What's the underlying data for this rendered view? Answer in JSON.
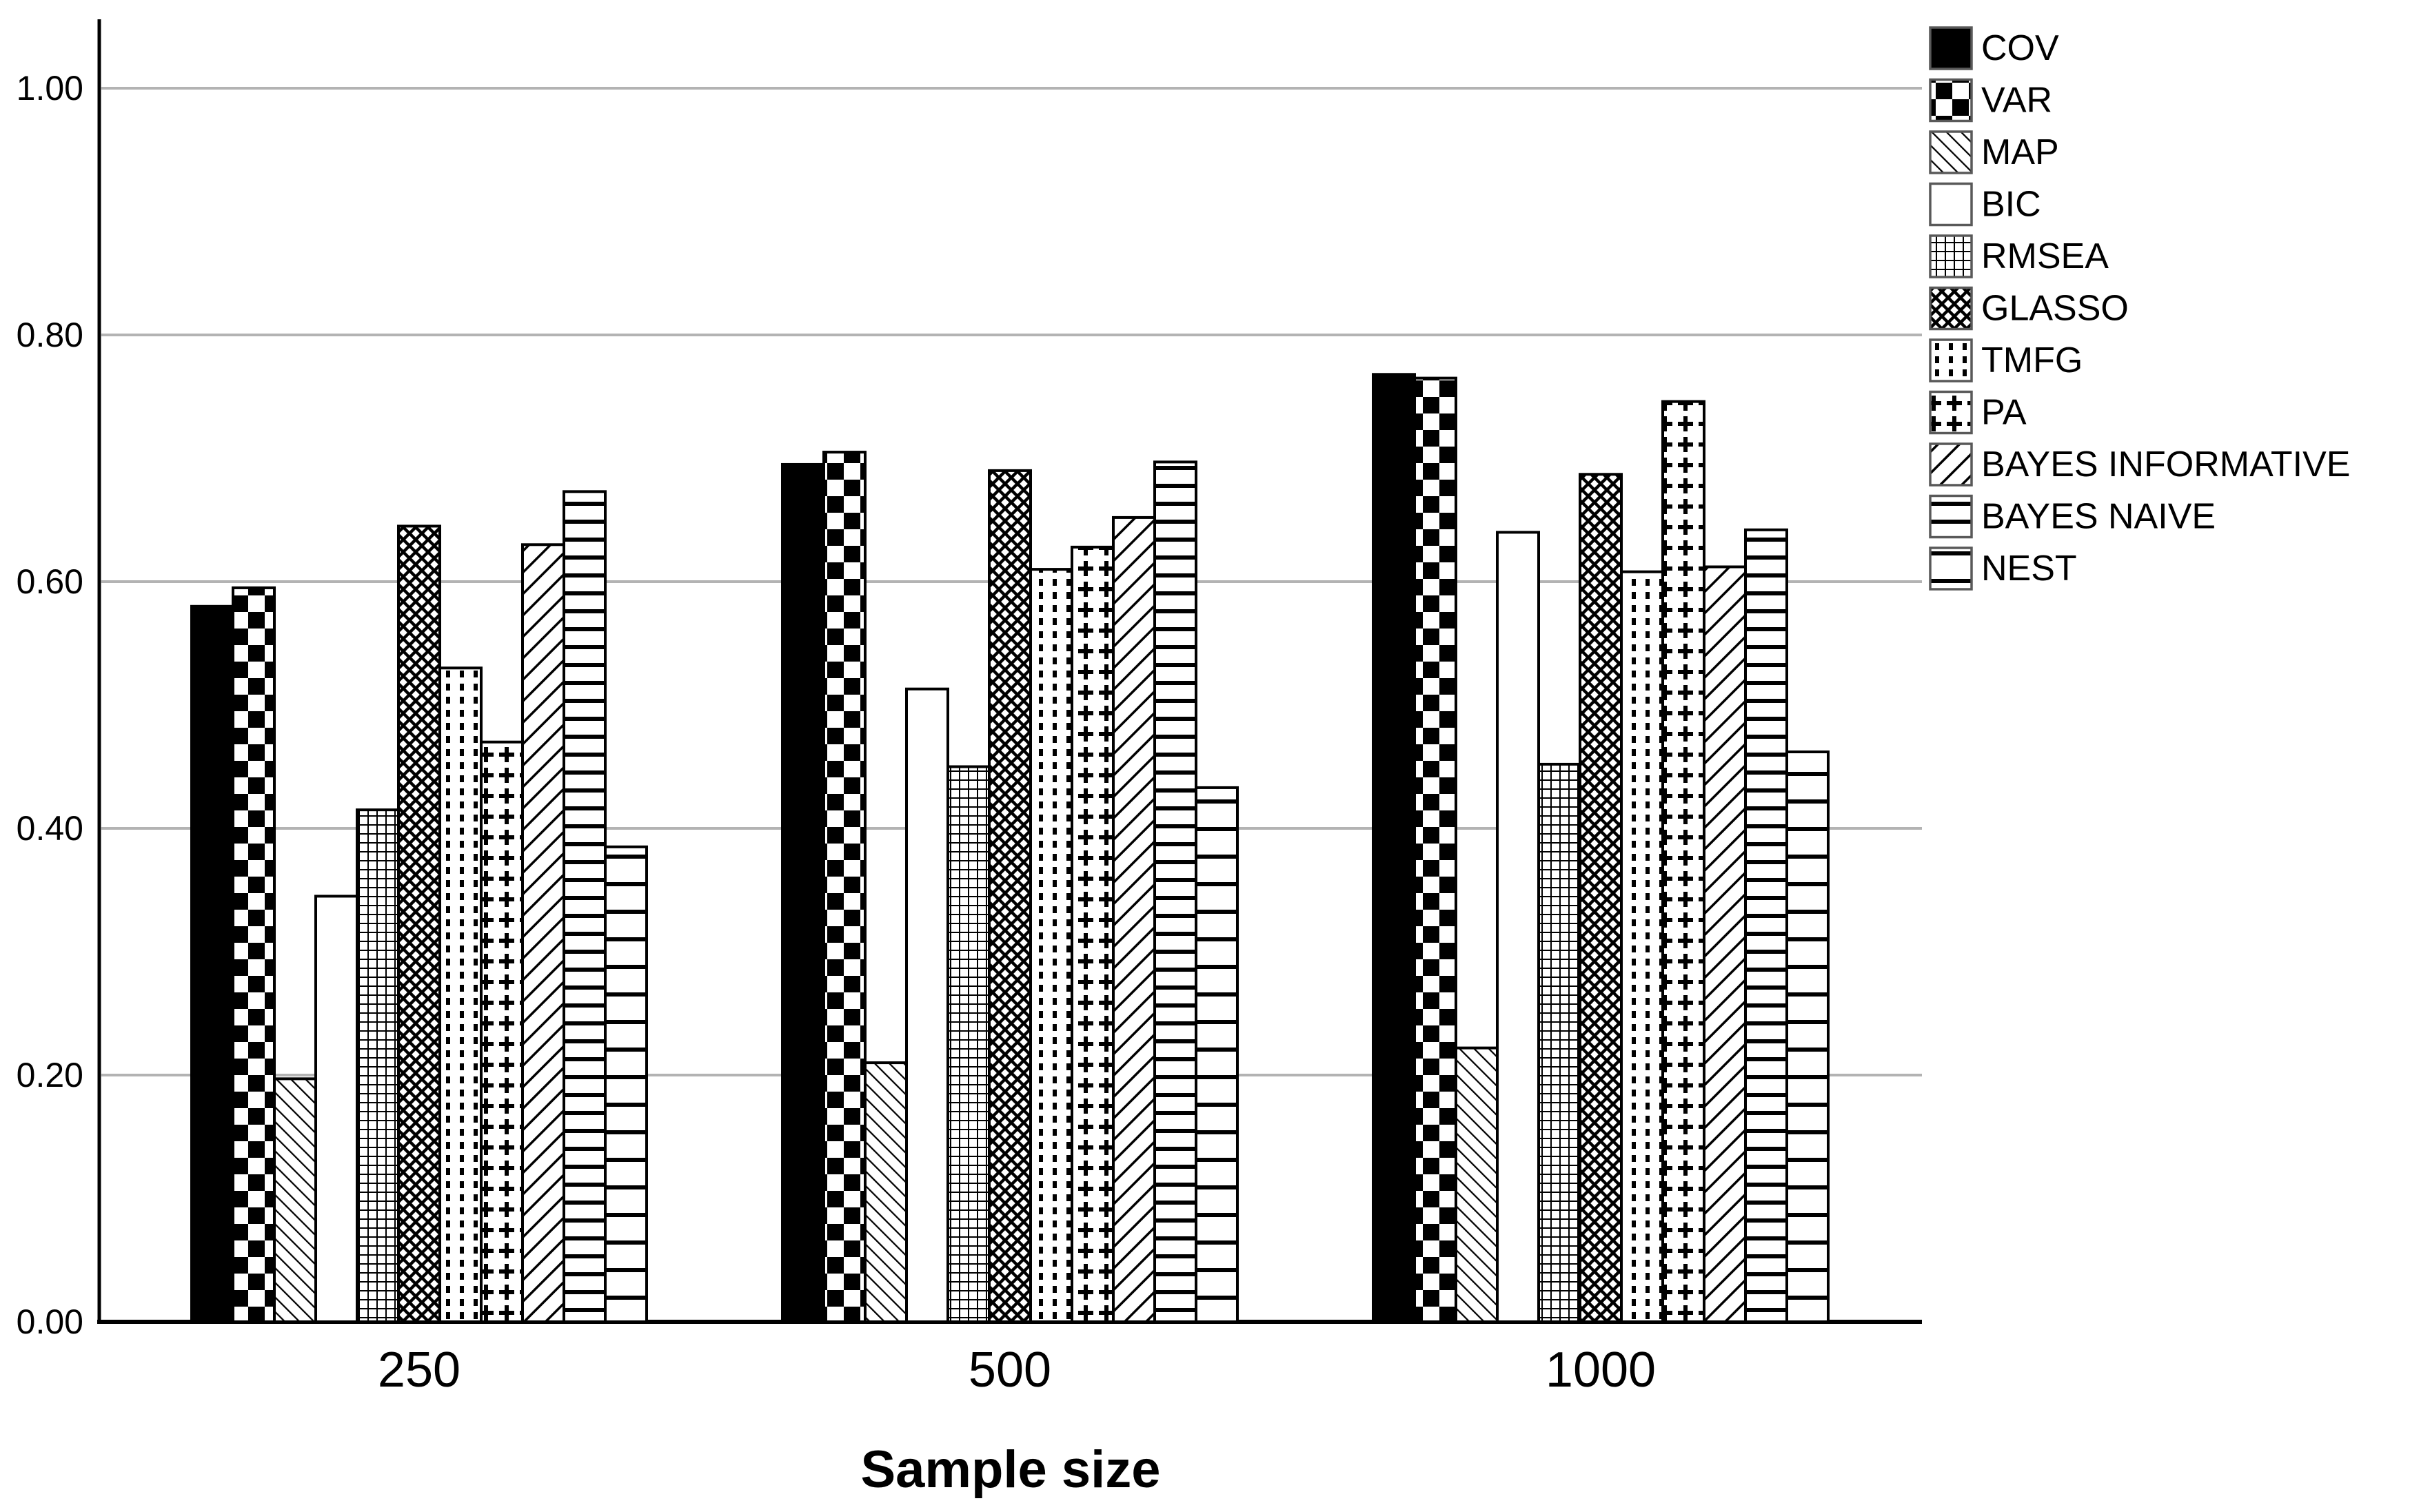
{
  "figure": {
    "background_color": "#ffffff",
    "axis_color": "#000000",
    "gridline_color": "#b3b3b3",
    "bar_outline_color": "#000000",
    "legend_swatch_border_color": "#595959",
    "text_color": "#000000"
  },
  "chart_data": {
    "type": "bar",
    "title": "",
    "xlabel": "Sample size",
    "ylabel": "",
    "categories": [
      "250",
      "500",
      "1000"
    ],
    "y_tick_labels": [
      "0.00",
      "0.20",
      "0.40",
      "0.60",
      "0.80",
      "1.00"
    ],
    "y_tick_values": [
      0.0,
      0.2,
      0.4,
      0.6,
      0.8,
      1.0
    ],
    "ylim": [
      0.0,
      1.05
    ],
    "grid": "horizontal-gray-lines",
    "legend_position": "top-right",
    "series": [
      {
        "name": "COV",
        "pattern": "solid-black",
        "values": [
          0.58,
          0.695,
          0.768
        ]
      },
      {
        "name": "VAR",
        "pattern": "checkerboard",
        "values": [
          0.595,
          0.705,
          0.765
        ]
      },
      {
        "name": "MAP",
        "pattern": "diagonal-backslash-thin",
        "values": [
          0.197,
          0.21,
          0.222
        ]
      },
      {
        "name": "BIC",
        "pattern": "plain-white",
        "values": [
          0.345,
          0.513,
          0.64
        ]
      },
      {
        "name": "RMSEA",
        "pattern": "square-grid",
        "values": [
          0.415,
          0.45,
          0.452
        ]
      },
      {
        "name": "GLASSO",
        "pattern": "diagonal-crosshatch",
        "values": [
          0.645,
          0.69,
          0.687
        ]
      },
      {
        "name": "TMFG",
        "pattern": "dotted-vertical-lines",
        "values": [
          0.53,
          0.61,
          0.608
        ]
      },
      {
        "name": "PA",
        "pattern": "plus-signs",
        "values": [
          0.47,
          0.628,
          0.746
        ]
      },
      {
        "name": "BAYES INFORMATIVE",
        "pattern": "diagonal-slash-thick",
        "values": [
          0.63,
          0.652,
          0.612
        ]
      },
      {
        "name": "BAYES NAIVE",
        "pattern": "horizontal-lines-dense",
        "values": [
          0.673,
          0.697,
          0.642
        ]
      },
      {
        "name": "NEST",
        "pattern": "horizontal-lines-sparse",
        "values": [
          0.385,
          0.433,
          0.462
        ]
      }
    ]
  }
}
